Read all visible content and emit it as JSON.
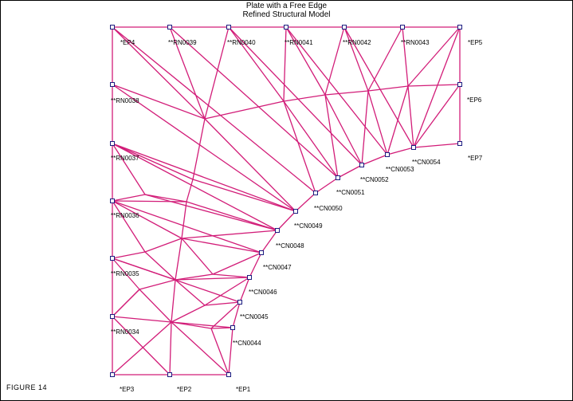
{
  "title": {
    "line1": "Plate with a Free Edge",
    "line2": "Refined Structural Model"
  },
  "figure_label": "FIGURE   14",
  "colors": {
    "edge": "#d21c78",
    "node_stroke": "#1c1c80",
    "background": "#ffffff"
  },
  "labels": [
    {
      "node": "EP4",
      "text": "*EP4"
    },
    {
      "node": "RN0039",
      "text": "**RN0039"
    },
    {
      "node": "RN0040",
      "text": "**RN0040"
    },
    {
      "node": "RN0041",
      "text": "**RN0041"
    },
    {
      "node": "RN0042",
      "text": "**RN0042"
    },
    {
      "node": "RN0043",
      "text": "**RN0043"
    },
    {
      "node": "EP5",
      "text": "*EP5"
    },
    {
      "node": "RN0038",
      "text": "**RN0038"
    },
    {
      "node": "EP6",
      "text": "*EP6"
    },
    {
      "node": "RN0037",
      "text": "**RN0037"
    },
    {
      "node": "EP7",
      "text": "*EP7"
    },
    {
      "node": "CN0054",
      "text": "**CN0054"
    },
    {
      "node": "CN0053",
      "text": "**CN0053"
    },
    {
      "node": "CN0052",
      "text": "**CN0052"
    },
    {
      "node": "CN0051",
      "text": "**CN0051"
    },
    {
      "node": "CN0050",
      "text": "**CN0050"
    },
    {
      "node": "RN0036",
      "text": "**RN0036"
    },
    {
      "node": "CN0049",
      "text": "**CN0049"
    },
    {
      "node": "CN0048",
      "text": "**CN0048"
    },
    {
      "node": "CN0047",
      "text": "**CN0047"
    },
    {
      "node": "RN0035",
      "text": "**RN0035"
    },
    {
      "node": "CN0046",
      "text": "**CN0046"
    },
    {
      "node": "CN0045",
      "text": "**CN0045"
    },
    {
      "node": "RN0034",
      "text": "**RN0034"
    },
    {
      "node": "CN0044",
      "text": "**CN0044"
    },
    {
      "node": "EP3",
      "text": "*EP3"
    },
    {
      "node": "EP2",
      "text": "*EP2"
    },
    {
      "node": "EP1",
      "text": "*EP1"
    }
  ]
}
